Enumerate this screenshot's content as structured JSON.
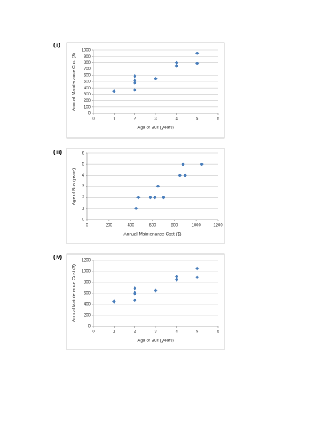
{
  "chart_data": [
    {
      "type": "scatter",
      "label": "(ii)",
      "x_label": "Age of Bus (years)",
      "y_label": "Annual Maintenance Cost ($)",
      "x": [
        1,
        2,
        2,
        2,
        2,
        3,
        4,
        4,
        5,
        5
      ],
      "values": [
        350,
        590,
        520,
        480,
        370,
        550,
        800,
        750,
        950,
        790
      ],
      "color": "#4a7ebb",
      "xlim": [
        0,
        6
      ],
      "xticks": [
        0,
        1,
        2,
        3,
        4,
        5,
        6
      ],
      "ylim": [
        0,
        1000
      ],
      "yticks": [
        0,
        100,
        200,
        300,
        400,
        500,
        600,
        700,
        800,
        900,
        1000
      ],
      "grid": true
    },
    {
      "type": "scatter",
      "label": "(iii)",
      "x_label": "Annual Maintenance Cost ($)",
      "y_label": "Age of Bus (years)",
      "x": [
        450,
        470,
        580,
        620,
        650,
        700,
        850,
        880,
        900,
        1050
      ],
      "values": [
        1,
        2,
        2,
        2,
        3,
        2,
        4,
        5,
        4,
        5
      ],
      "color": "#4a7ebb",
      "xlim": [
        0,
        1200
      ],
      "xticks": [
        0,
        200,
        400,
        600,
        800,
        1000,
        1200
      ],
      "ylim": [
        0,
        6
      ],
      "yticks": [
        0,
        1,
        2,
        3,
        4,
        5,
        6
      ],
      "grid": true
    },
    {
      "type": "scatter",
      "label": "(iv)",
      "x_label": "Age of Bus (years)",
      "y_label": "Annual Maintenance Cost ($)",
      "x": [
        1,
        2,
        2,
        2,
        2,
        3,
        4,
        4,
        5,
        5
      ],
      "values": [
        450,
        690,
        610,
        590,
        470,
        650,
        900,
        850,
        1050,
        890
      ],
      "color": "#4a7ebb",
      "xlim": [
        0,
        6
      ],
      "xticks": [
        0,
        1,
        2,
        3,
        4,
        5,
        6
      ],
      "ylim": [
        0,
        1200
      ],
      "yticks": [
        0,
        200,
        400,
        600,
        800,
        1000,
        1200
      ],
      "grid": true
    }
  ]
}
